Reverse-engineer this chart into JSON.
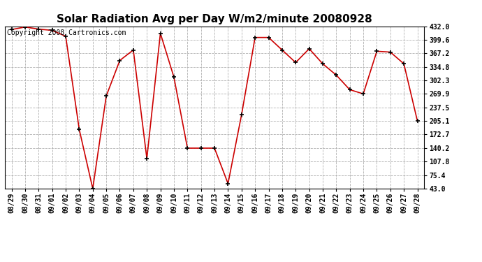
{
  "title": "Solar Radiation Avg per Day W/m2/minute 20080928",
  "copyright": "Copyright 2008 Cartronics.com",
  "x_labels": [
    "08/29",
    "08/30",
    "08/31",
    "09/01",
    "09/02",
    "09/03",
    "09/04",
    "09/05",
    "09/06",
    "09/07",
    "09/08",
    "09/09",
    "09/10",
    "09/11",
    "09/12",
    "09/13",
    "09/14",
    "09/15",
    "09/16",
    "09/17",
    "09/18",
    "09/19",
    "09/20",
    "09/21",
    "09/22",
    "09/23",
    "09/24",
    "09/25",
    "09/26",
    "09/27",
    "09/28"
  ],
  "y_values": [
    424,
    430,
    425,
    422,
    408,
    185,
    43,
    265,
    350,
    375,
    115,
    415,
    310,
    140,
    140,
    140,
    55,
    220,
    405,
    405,
    375,
    345,
    378,
    342,
    315,
    280,
    270,
    372,
    370,
    342,
    205
  ],
  "y_ticks": [
    43.0,
    75.4,
    107.8,
    140.2,
    172.7,
    205.1,
    237.5,
    269.9,
    302.3,
    334.8,
    367.2,
    399.6,
    432.0
  ],
  "y_min": 43.0,
  "y_max": 432.0,
  "line_color": "#cc0000",
  "marker": "+",
  "marker_size": 5,
  "marker_color": "#000000",
  "bg_color": "#ffffff",
  "plot_bg_color": "#ffffff",
  "grid_color": "#b0b0b0",
  "grid_style": "--",
  "title_fontsize": 11,
  "copyright_fontsize": 7,
  "tick_fontsize": 7,
  "line_width": 1.2
}
